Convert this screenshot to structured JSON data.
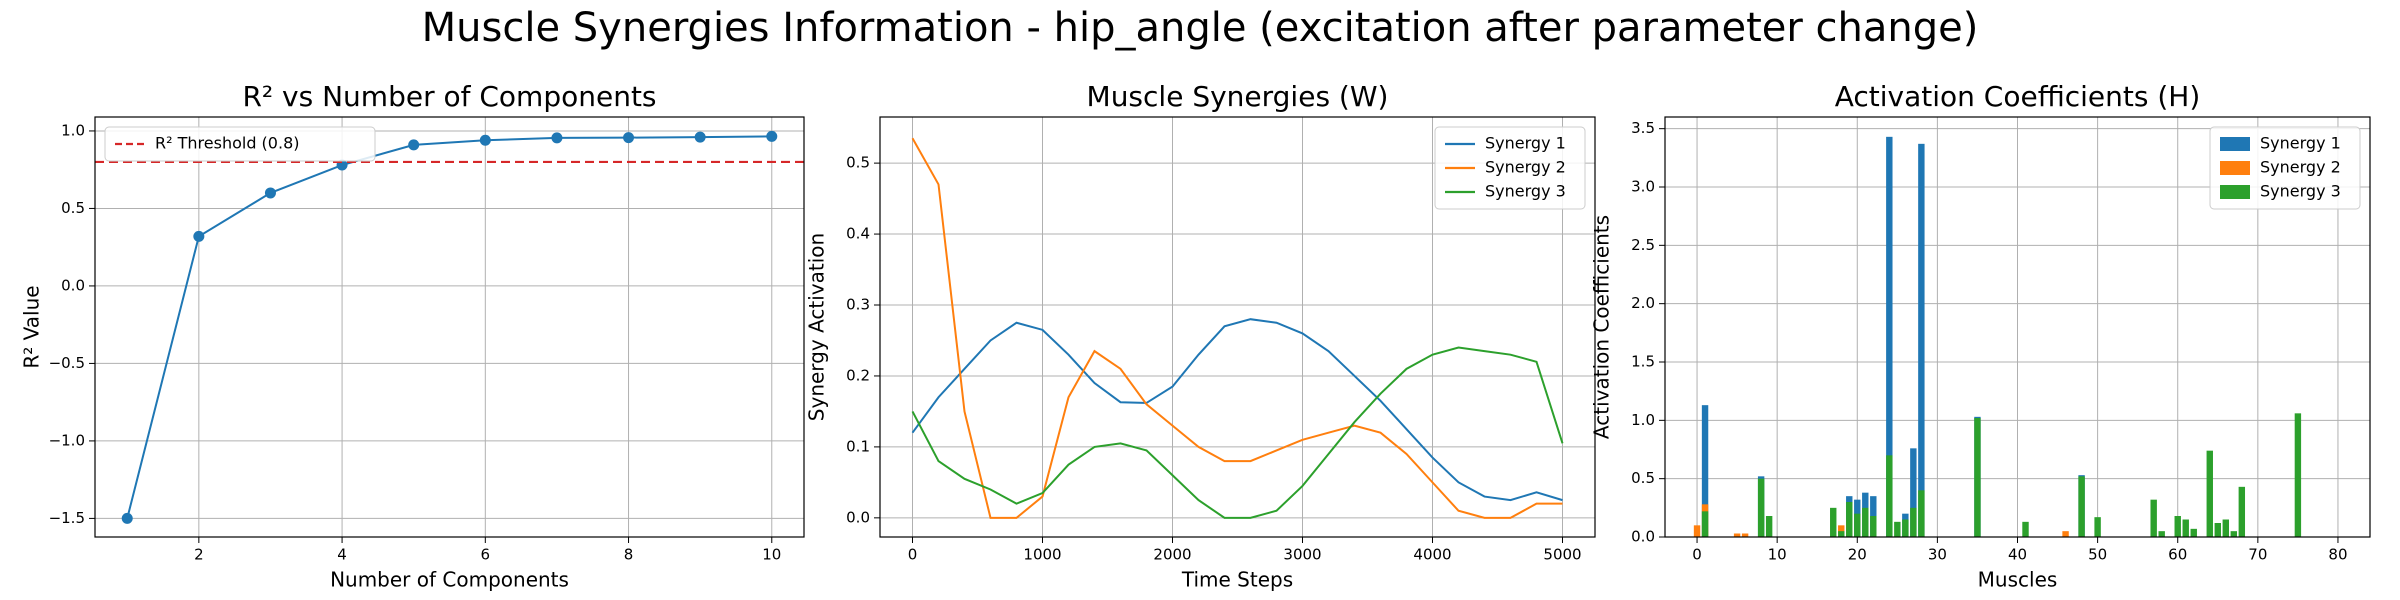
{
  "title": "Muscle Synergies Information - hip_angle (excitation after parameter change)",
  "chart_data": [
    {
      "type": "line",
      "title": "R² vs Number of Components",
      "xlabel": "Number of Components",
      "ylabel": "R² Value",
      "x": [
        1,
        2,
        3,
        4,
        5,
        6,
        7,
        8,
        9,
        10
      ],
      "series": [
        {
          "color": "#1f77b4",
          "values": [
            -1.5,
            0.32,
            0.6,
            0.78,
            0.91,
            0.94,
            0.955,
            0.957,
            0.96,
            0.965
          ]
        }
      ],
      "markers": true,
      "hlines": [
        {
          "y": 0.8,
          "name": "R² Threshold (0.8)",
          "color": "#d62728",
          "style": "dashed"
        }
      ],
      "xlim": [
        0.55,
        10.45
      ],
      "ylim": [
        -1.62,
        1.09
      ],
      "xticks": [
        2,
        4,
        6,
        8,
        10
      ],
      "yticks": [
        {
          "value": -1.5,
          "label": "−1.5"
        },
        {
          "value": -1.0,
          "label": "−1.0"
        },
        {
          "value": -0.5,
          "label": "−0.5"
        },
        {
          "value": 0,
          "label": "0.0"
        },
        0.5,
        {
          "value": 1,
          "label": "1.0"
        }
      ],
      "grid": true,
      "legend": "upper left"
    },
    {
      "type": "line",
      "title": "Muscle Synergies (W)",
      "xlabel": "Time Steps",
      "ylabel": "Synergy Activation",
      "x": [
        0,
        200,
        400,
        600,
        800,
        1000,
        1200,
        1400,
        1600,
        1800,
        2000,
        2200,
        2400,
        2600,
        2800,
        3000,
        3200,
        3400,
        3600,
        3800,
        4000,
        4200,
        4400,
        4600,
        4800,
        5000
      ],
      "series": [
        {
          "name": "Synergy 1",
          "color": "#1f77b4",
          "values": [
            0.12,
            0.17,
            0.21,
            0.25,
            0.275,
            0.265,
            0.23,
            0.19,
            0.163,
            0.162,
            0.185,
            0.23,
            0.27,
            0.28,
            0.275,
            0.26,
            0.235,
            0.2,
            0.165,
            0.125,
            0.085,
            0.05,
            0.03,
            0.025,
            0.036,
            0.025
          ]
        },
        {
          "name": "Synergy 2",
          "color": "#ff7f0e",
          "values": [
            0.535,
            0.47,
            0.15,
            0,
            0,
            0.03,
            0.17,
            0.235,
            0.21,
            0.16,
            0.13,
            0.1,
            0.08,
            0.08,
            0.095,
            0.11,
            0.12,
            0.13,
            0.12,
            0.09,
            0.05,
            0.01,
            0,
            0,
            0.02,
            0.02
          ]
        },
        {
          "name": "Synergy 3",
          "color": "#2ca02c",
          "values": [
            0.15,
            0.08,
            0.055,
            0.04,
            0.02,
            0.035,
            0.075,
            0.1,
            0.105,
            0.095,
            0.06,
            0.025,
            0,
            0,
            0.01,
            0.045,
            0.09,
            0.135,
            0.175,
            0.21,
            0.23,
            0.24,
            0.235,
            0.23,
            0.22,
            0.105
          ]
        }
      ],
      "xlim": [
        -250,
        5250
      ],
      "ylim": [
        -0.027,
        0.565
      ],
      "xticks": [
        0,
        1000,
        2000,
        3000,
        4000,
        5000
      ],
      "yticks": [
        {
          "value": 0,
          "label": "0.0"
        },
        0.1,
        0.2,
        0.3,
        0.4,
        0.5
      ],
      "grid": true,
      "legend": "upper right"
    },
    {
      "type": "bar",
      "title": "Activation Coefficients (H)",
      "xlabel": "Muscles",
      "ylabel": "Activation Coefficients",
      "x": [
        0,
        1,
        5,
        6,
        8,
        9,
        17,
        18,
        19,
        20,
        21,
        22,
        24,
        25,
        26,
        27,
        28,
        35,
        41,
        46,
        48,
        50,
        57,
        58,
        60,
        61,
        62,
        64,
        65,
        66,
        67,
        68,
        75
      ],
      "series": [
        {
          "name": "Synergy 1",
          "color": "#1f77b4",
          "values": [
            0,
            1.13,
            0,
            0,
            0.52,
            0,
            0,
            0,
            0.35,
            0.32,
            0.38,
            0.35,
            3.43,
            0,
            0.2,
            0.76,
            3.37,
            1.03,
            0,
            0,
            0.53,
            0,
            0,
            0,
            0,
            0,
            0,
            0,
            0,
            0,
            0,
            0,
            0
          ]
        },
        {
          "name": "Synergy 2",
          "color": "#ff7f0e",
          "values": [
            0.1,
            0.28,
            0.03,
            0.03,
            0,
            0,
            0,
            0.1,
            0.15,
            0,
            0,
            0,
            0,
            0,
            0,
            0,
            0,
            0,
            0,
            0.05,
            0,
            0,
            0,
            0,
            0,
            0,
            0,
            0,
            0,
            0,
            0,
            0,
            0
          ]
        },
        {
          "name": "Synergy 3",
          "color": "#2ca02c",
          "values": [
            0,
            0.22,
            0,
            0,
            0.5,
            0.18,
            0.25,
            0.05,
            0.3,
            0.2,
            0.25,
            0.18,
            0.7,
            0.13,
            0.15,
            0.25,
            0.4,
            1.02,
            0.13,
            0,
            0.52,
            0.17,
            0.32,
            0.05,
            0.18,
            0.15,
            0.07,
            0.74,
            0.12,
            0.15,
            0.05,
            0.43,
            1.06
          ]
        }
      ],
      "xlim": [
        -4,
        84
      ],
      "ylim": [
        0,
        3.6
      ],
      "xticks": [
        0,
        10,
        20,
        30,
        40,
        50,
        60,
        70,
        80
      ],
      "yticks": [
        {
          "value": 0,
          "label": "0.0"
        },
        0.5,
        {
          "value": 1,
          "label": "1.0"
        },
        1.5,
        {
          "value": 2,
          "label": "2.0"
        },
        2.5,
        {
          "value": 3,
          "label": "3.0"
        },
        3.5
      ],
      "grid": true,
      "legend": "upper right"
    }
  ]
}
